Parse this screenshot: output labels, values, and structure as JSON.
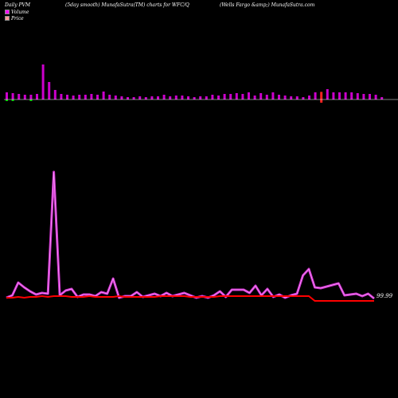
{
  "header": {
    "left": "Daily PVM",
    "center": "(5day smooth) MunafaSutra(TM) charts for WFC/Q",
    "right": "(Wells Fargo  &amp;) MunafaSutra.com"
  },
  "legend": [
    {
      "label": "Volume",
      "color": "#ff00ff"
    },
    {
      "label": "Price",
      "color": "#ff9999"
    }
  ],
  "colors": {
    "volume_bar": "#cc00cc",
    "volume_bar_up": "#00cc00",
    "volume_bar_down": "#ff2222",
    "pvm_line": "#cc33cc",
    "price_line": "#ff0000",
    "baseline": "#ffffff"
  },
  "chart_data": {
    "type": "bar",
    "volume_bars": [
      {
        "v": 9,
        "c": "up"
      },
      {
        "v": 8,
        "c": "up"
      },
      {
        "v": 7,
        "c": "n"
      },
      {
        "v": 6,
        "c": "n"
      },
      {
        "v": 6,
        "c": "up"
      },
      {
        "v": 7,
        "c": "n"
      },
      {
        "v": 44,
        "c": "n"
      },
      {
        "v": 22,
        "c": "n"
      },
      {
        "v": 12,
        "c": "n"
      },
      {
        "v": 7,
        "c": "n"
      },
      {
        "v": 6,
        "c": "n"
      },
      {
        "v": 5,
        "c": "n"
      },
      {
        "v": 6,
        "c": "n"
      },
      {
        "v": 6,
        "c": "n"
      },
      {
        "v": 7,
        "c": "n"
      },
      {
        "v": 6,
        "c": "n"
      },
      {
        "v": 10,
        "c": "n"
      },
      {
        "v": 6,
        "c": "n"
      },
      {
        "v": 5,
        "c": "n"
      },
      {
        "v": 4,
        "c": "n"
      },
      {
        "v": 3,
        "c": "n"
      },
      {
        "v": 3,
        "c": "n"
      },
      {
        "v": 4,
        "c": "n"
      },
      {
        "v": 3,
        "c": "n"
      },
      {
        "v": 4,
        "c": "n"
      },
      {
        "v": 4,
        "c": "n"
      },
      {
        "v": 6,
        "c": "n"
      },
      {
        "v": 4,
        "c": "n"
      },
      {
        "v": 5,
        "c": "n"
      },
      {
        "v": 5,
        "c": "n"
      },
      {
        "v": 4,
        "c": "n"
      },
      {
        "v": 3,
        "c": "n"
      },
      {
        "v": 4,
        "c": "n"
      },
      {
        "v": 4,
        "c": "n"
      },
      {
        "v": 6,
        "c": "n"
      },
      {
        "v": 5,
        "c": "n"
      },
      {
        "v": 7,
        "c": "n"
      },
      {
        "v": 7,
        "c": "n"
      },
      {
        "v": 8,
        "c": "n"
      },
      {
        "v": 7,
        "c": "n"
      },
      {
        "v": 9,
        "c": "n"
      },
      {
        "v": 5,
        "c": "n"
      },
      {
        "v": 8,
        "c": "n"
      },
      {
        "v": 6,
        "c": "n"
      },
      {
        "v": 9,
        "c": "n"
      },
      {
        "v": 6,
        "c": "n"
      },
      {
        "v": 5,
        "c": "n"
      },
      {
        "v": 4,
        "c": "n"
      },
      {
        "v": 4,
        "c": "n"
      },
      {
        "v": 3,
        "c": "n"
      },
      {
        "v": 5,
        "c": "n"
      },
      {
        "v": 9,
        "c": "n"
      },
      {
        "v": 16,
        "c": "down"
      },
      {
        "v": 13,
        "c": "n"
      },
      {
        "v": 9,
        "c": "n"
      },
      {
        "v": 9,
        "c": "n"
      },
      {
        "v": 9,
        "c": "n"
      },
      {
        "v": 9,
        "c": "n"
      },
      {
        "v": 8,
        "c": "n"
      },
      {
        "v": 7,
        "c": "n"
      },
      {
        "v": 7,
        "c": "n"
      },
      {
        "v": 6,
        "c": "n"
      },
      {
        "v": 3,
        "c": "n"
      }
    ],
    "pvm_series": [
      2,
      5,
      21,
      15,
      10,
      6,
      8,
      7,
      160,
      5,
      11,
      13,
      3,
      6,
      6,
      4,
      9,
      7,
      26,
      2,
      4,
      4,
      9,
      3,
      5,
      7,
      4,
      8,
      4,
      6,
      8,
      5,
      2,
      4,
      2,
      5,
      10,
      3,
      12,
      12,
      12,
      8,
      17,
      5,
      13,
      3,
      6,
      2,
      5,
      7,
      30,
      38,
      15,
      14,
      16,
      18,
      20,
      5,
      6,
      7,
      4,
      7,
      1
    ],
    "price_series": [
      2,
      2,
      3,
      2,
      3,
      3,
      4,
      3,
      4,
      4,
      4,
      3,
      3,
      3,
      4,
      3,
      3,
      3,
      3,
      4,
      3,
      3,
      3,
      3,
      3,
      3,
      4,
      4,
      4,
      4,
      4,
      3,
      3,
      3,
      3,
      3,
      4,
      4,
      4,
      4,
      4,
      4,
      4,
      4,
      4,
      4,
      4,
      4,
      4,
      4,
      4,
      4,
      -2,
      -2,
      -2,
      -2,
      -2,
      -2,
      -2,
      -2,
      -2,
      -2,
      -2
    ],
    "last_label": "99.99"
  }
}
